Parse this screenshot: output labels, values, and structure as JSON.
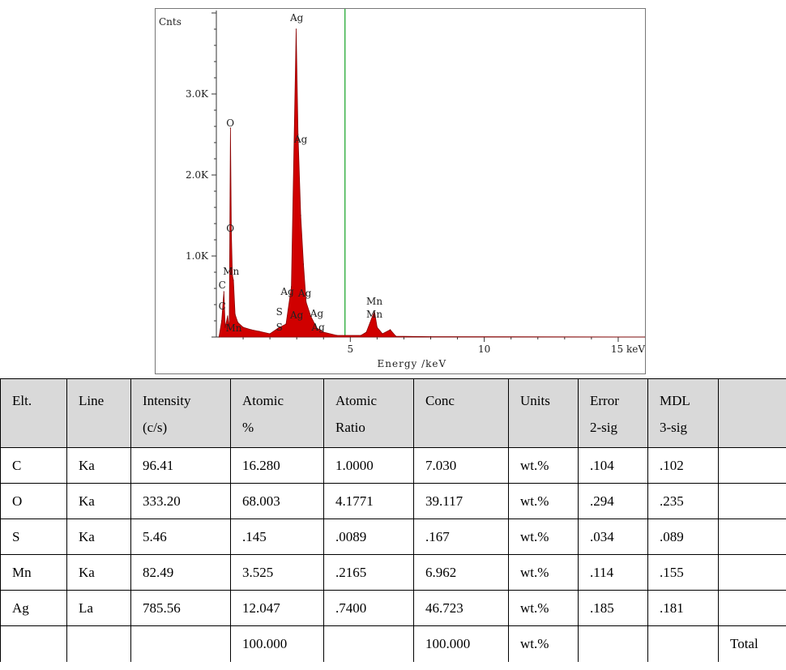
{
  "chart_data": {
    "type": "line",
    "ylabel": "Cnts",
    "xlabel": "Energy /keV",
    "x_ticks": [
      "5",
      "10",
      "15 keV"
    ],
    "x_tick_values": [
      5,
      10,
      15
    ],
    "y_ticks": [
      "1.0K",
      "2.0K",
      "3.0K"
    ],
    "y_tick_values": [
      1000,
      2000,
      3000
    ],
    "xlim": [
      0,
      16
    ],
    "ylim": [
      0,
      4000
    ],
    "marker_line_x": 4.8,
    "series_color": "#d00000",
    "marker_color": "#3cb34a",
    "spectrum": [
      {
        "x": 0.1,
        "y": 0
      },
      {
        "x": 0.2,
        "y": 200
      },
      {
        "x": 0.28,
        "y": 560
      },
      {
        "x": 0.33,
        "y": 120
      },
      {
        "x": 0.42,
        "y": 260
      },
      {
        "x": 0.48,
        "y": 100
      },
      {
        "x": 0.525,
        "y": 2580
      },
      {
        "x": 0.56,
        "y": 1300
      },
      {
        "x": 0.6,
        "y": 760
      },
      {
        "x": 0.637,
        "y": 700
      },
      {
        "x": 0.7,
        "y": 280
      },
      {
        "x": 0.8,
        "y": 180
      },
      {
        "x": 1.0,
        "y": 120
      },
      {
        "x": 1.3,
        "y": 90
      },
      {
        "x": 1.6,
        "y": 70
      },
      {
        "x": 2.0,
        "y": 40
      },
      {
        "x": 2.31,
        "y": 110
      },
      {
        "x": 2.6,
        "y": 160
      },
      {
        "x": 2.8,
        "y": 620
      },
      {
        "x": 2.98,
        "y": 3800
      },
      {
        "x": 3.05,
        "y": 2500
      },
      {
        "x": 3.15,
        "y": 1500
      },
      {
        "x": 3.25,
        "y": 900
      },
      {
        "x": 3.35,
        "y": 430
      },
      {
        "x": 3.52,
        "y": 260
      },
      {
        "x": 3.75,
        "y": 110
      },
      {
        "x": 4.0,
        "y": 60
      },
      {
        "x": 4.5,
        "y": 20
      },
      {
        "x": 5.4,
        "y": 20
      },
      {
        "x": 5.6,
        "y": 60
      },
      {
        "x": 5.9,
        "y": 320
      },
      {
        "x": 6.0,
        "y": 120
      },
      {
        "x": 6.2,
        "y": 40
      },
      {
        "x": 6.49,
        "y": 90
      },
      {
        "x": 6.7,
        "y": 10
      },
      {
        "x": 8.0,
        "y": 5
      },
      {
        "x": 16.0,
        "y": 0
      }
    ],
    "peak_labels": [
      {
        "text": "Ag",
        "x": 3.0,
        "y": 3900
      },
      {
        "text": "O",
        "x": 0.52,
        "y": 2600
      },
      {
        "text": "Ag",
        "x": 3.15,
        "y": 2400
      },
      {
        "text": "O",
        "x": 0.52,
        "y": 1300
      },
      {
        "text": "Mn",
        "x": 0.55,
        "y": 770
      },
      {
        "text": "C",
        "x": 0.22,
        "y": 600
      },
      {
        "text": "C",
        "x": 0.22,
        "y": 340
      },
      {
        "text": "Ag",
        "x": 2.65,
        "y": 520
      },
      {
        "text": "Ag",
        "x": 3.3,
        "y": 500
      },
      {
        "text": "S",
        "x": 2.35,
        "y": 270
      },
      {
        "text": "Ag",
        "x": 3.0,
        "y": 230
      },
      {
        "text": "Ag",
        "x": 3.75,
        "y": 250
      },
      {
        "text": "S",
        "x": 2.35,
        "y": 80
      },
      {
        "text": "Ag",
        "x": 3.8,
        "y": 80
      },
      {
        "text": "Mn",
        "x": 0.65,
        "y": 70
      },
      {
        "text": "Mn",
        "x": 5.9,
        "y": 400
      },
      {
        "text": "Mn",
        "x": 5.9,
        "y": 240
      }
    ]
  },
  "table": {
    "headers": [
      [
        "Elt.",
        ""
      ],
      [
        "Line",
        ""
      ],
      [
        "Intensity",
        "(c/s)"
      ],
      [
        "Atomic",
        "%"
      ],
      [
        "Atomic",
        "Ratio"
      ],
      [
        "Conc",
        ""
      ],
      [
        "Units",
        ""
      ],
      [
        "Error",
        "2-sig"
      ],
      [
        "MDL",
        "3-sig"
      ],
      [
        "",
        ""
      ]
    ],
    "rows": [
      [
        "C",
        "Ka",
        "96.41",
        "16.280",
        "1.0000",
        "7.030",
        "wt.%",
        ".104",
        ".102",
        ""
      ],
      [
        "O",
        "Ka",
        "333.20",
        "68.003",
        "4.1771",
        "39.117",
        "wt.%",
        ".294",
        ".235",
        ""
      ],
      [
        "S",
        "Ka",
        "5.46",
        ".145",
        ".0089",
        ".167",
        "wt.%",
        ".034",
        ".089",
        ""
      ],
      [
        "Mn",
        "Ka",
        "82.49",
        "3.525",
        ".2165",
        "6.962",
        "wt.%",
        ".114",
        ".155",
        ""
      ],
      [
        "Ag",
        "La",
        "785.56",
        "12.047",
        ".7400",
        "46.723",
        "wt.%",
        ".185",
        ".181",
        ""
      ],
      [
        "",
        "",
        "",
        "100.000",
        "",
        "100.000",
        "wt.%",
        "",
        "",
        "Total"
      ]
    ]
  }
}
